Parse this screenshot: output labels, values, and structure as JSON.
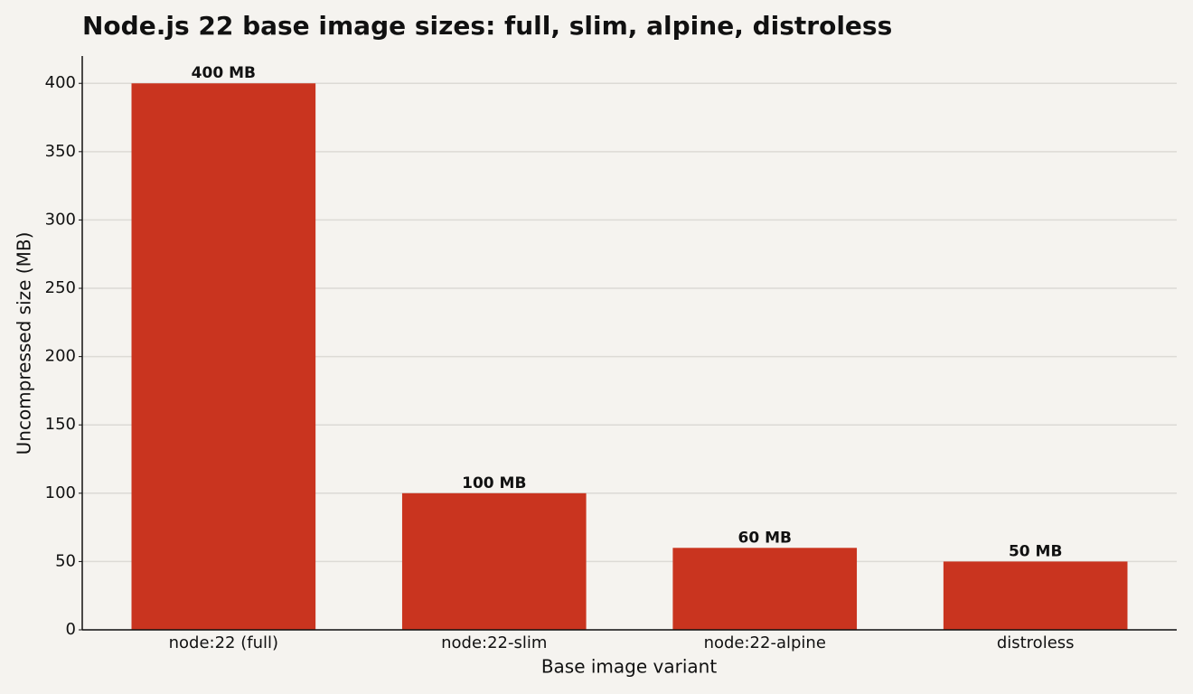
{
  "chart_data": {
    "type": "bar",
    "title": "Node.js 22 base image sizes: full, slim, alpine, distroless",
    "x_label": "Base image variant",
    "y_label": "Uncompressed size (MB)",
    "categories": [
      "node:22 (full)",
      "node:22-slim",
      "node:22-alpine",
      "distroless"
    ],
    "values": [
      400,
      100,
      60,
      50
    ],
    "value_labels": [
      "400 MB",
      "100 MB",
      "60 MB",
      "50 MB"
    ],
    "color": "#c9341f",
    "ylim": [
      0,
      420
    ],
    "yticks": [
      0,
      50,
      100,
      150,
      200,
      250,
      300,
      350,
      400
    ],
    "grid": true
  }
}
